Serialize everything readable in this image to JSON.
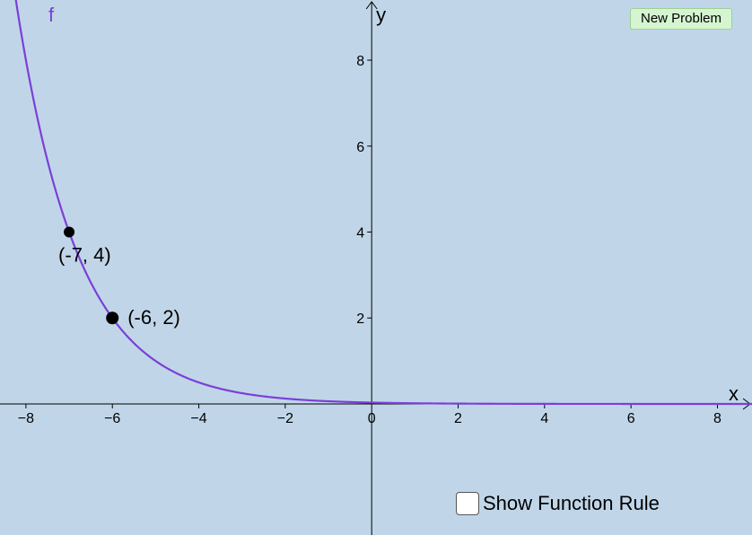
{
  "toolbar": {
    "new_problem_label": "New Problem"
  },
  "controls": {
    "show_rule_label": "Show Function Rule",
    "show_rule_checked": false
  },
  "colors": {
    "background": "#c0d6e8",
    "curve": "#7b3fd9",
    "point": "#000000"
  },
  "chart_data": {
    "type": "line",
    "function_label": "f",
    "xlabel": "x",
    "ylabel": "y",
    "xlim": [
      -8.6,
      8.8
    ],
    "ylim": [
      -3.05,
      9.4
    ],
    "x_ticks": [
      "−8",
      "−6",
      "−4",
      "−2",
      "0",
      "2",
      "4",
      "6",
      "8"
    ],
    "y_ticks": [
      "2",
      "4",
      "6",
      "8"
    ],
    "grid": false,
    "points": [
      {
        "x": -7,
        "y": 4,
        "label": "(-7, 4)"
      },
      {
        "x": -6,
        "y": 2,
        "label": "(-6, 2)"
      }
    ],
    "curve": {
      "base": 0.5,
      "anchor_x": -6,
      "anchor_y": 2
    }
  }
}
